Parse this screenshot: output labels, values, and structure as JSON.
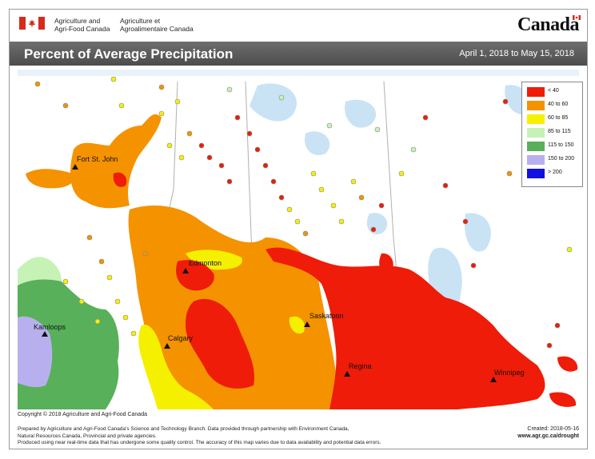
{
  "header": {
    "org_en_line1": "Agriculture and",
    "org_en_line2": "Agri-Food Canada",
    "org_fr_line1": "Agriculture et",
    "org_fr_line2": "Agroalimentaire Canada",
    "wordmark": "Canada",
    "flag_color": "#d52b1e"
  },
  "title_bar": {
    "title": "Percent of Average Precipitation",
    "period": "April 1, 2018 to May 15, 2018"
  },
  "legend": {
    "items": [
      {
        "label": "< 40",
        "color": "#ee1c08"
      },
      {
        "label": "40 to 60",
        "color": "#f59200"
      },
      {
        "label": "60 to 85",
        "color": "#f5f000"
      },
      {
        "label": "85 to 115",
        "color": "#c6f2b6"
      },
      {
        "label": "115 to 150",
        "color": "#58b05a"
      },
      {
        "label": "150 to 200",
        "color": "#b8b0ee"
      },
      {
        "label": "> 200",
        "color": "#1010e0"
      }
    ]
  },
  "cities": [
    {
      "name": "Fort St. John"
    },
    {
      "name": "Edmonton"
    },
    {
      "name": "Kamloops"
    },
    {
      "name": "Calgary"
    },
    {
      "name": "Saskatoon"
    },
    {
      "name": "Regina"
    },
    {
      "name": "Winnipeg"
    }
  ],
  "footer": {
    "copyright": "Copyright © 2018 Agriculture and Agri-Food Canada",
    "line1": "Prepared by Agriculture and Agri-Food Canada's Science and Technology Branch. Data provided through partnership with Environment Canada,",
    "line2": "Natural Resources Canada, Provincial and private agencies.",
    "line3": "Produced using near real-time data that has undergone some quality control. The accuracy of this map varies due to data availability and potential data errors.",
    "created": "Created: 2018-05-16",
    "url": "www.agr.gc.ca/drought"
  },
  "colors": {
    "lt40": "#ee1c08",
    "c40_60": "#f59200",
    "c60_85": "#f5f000",
    "c85_115": "#c6f2b6",
    "c115_150": "#58b05a",
    "c150_200": "#b8b0ee",
    "water": "#c9e3f5"
  }
}
